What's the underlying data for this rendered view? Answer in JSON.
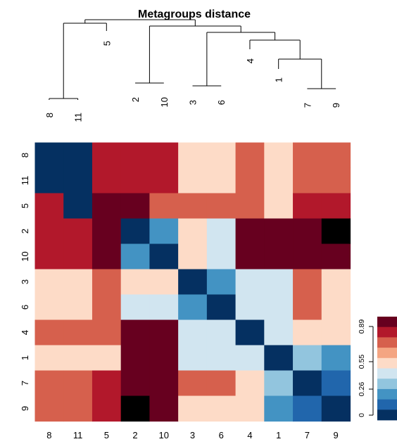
{
  "chart_data": {
    "type": "heatmap",
    "title": "Metagroups distance",
    "labels": [
      "8",
      "11",
      "5",
      "2",
      "10",
      "3",
      "6",
      "4",
      "1",
      "7",
      "9"
    ],
    "dendrogram_leaf_labels": [
      "8",
      "11",
      "5",
      "2",
      "10",
      "3",
      "6",
      "4",
      "1",
      "7",
      "9"
    ],
    "row_order_top_to_bottom": [
      "8",
      "11",
      "5",
      "2",
      "10",
      "3",
      "6",
      "4",
      "1",
      "7",
      "9"
    ],
    "col_order_left_to_right": [
      "8",
      "11",
      "5",
      "2",
      "10",
      "3",
      "6",
      "4",
      "1",
      "7",
      "9"
    ],
    "values": [
      [
        0,
        0,
        8,
        8,
        8,
        5,
        5,
        7,
        5,
        7,
        7
      ],
      [
        0,
        0,
        8,
        8,
        8,
        5,
        5,
        7,
        5,
        7,
        7
      ],
      [
        8,
        0,
        9,
        9,
        7,
        7,
        7,
        7,
        5,
        8,
        8
      ],
      [
        8,
        8,
        9,
        0,
        2,
        5,
        4,
        9,
        9,
        9,
        10
      ],
      [
        8,
        8,
        9,
        2,
        0,
        5,
        4,
        9,
        9,
        9,
        9
      ],
      [
        5,
        5,
        7,
        5,
        5,
        0,
        2,
        4,
        4,
        7,
        5
      ],
      [
        5,
        5,
        7,
        4,
        4,
        2,
        0,
        4,
        4,
        7,
        5
      ],
      [
        7,
        7,
        7,
        9,
        9,
        4,
        4,
        0,
        4,
        5,
        5
      ],
      [
        5,
        5,
        5,
        9,
        9,
        4,
        4,
        4,
        0,
        3,
        2
      ],
      [
        7,
        7,
        8,
        9,
        9,
        7,
        7,
        5,
        3,
        0,
        1
      ],
      [
        7,
        7,
        8,
        10,
        9,
        5,
        5,
        5,
        2,
        1,
        0
      ]
    ],
    "color_key": {
      "colors": [
        "#053061",
        "#2166AC",
        "#4393C3",
        "#92C5DE",
        "#D1E5F0",
        "#FDDBC7",
        "#F4A582",
        "#D6604D",
        "#B2182B",
        "#67001F"
      ],
      "tick_labels": [
        "0",
        "0.26",
        "0.55",
        "0.89"
      ]
    },
    "dendrogram": {
      "tree": [
        [
          [
            "8",
            "11"
          ],
          "5"
        ],
        [
          [
            "2",
            "10"
          ],
          [
            [
              "3",
              "6"
            ],
            [
              "4",
              [
                "1",
                [
                  "7",
                  "9"
                ]
              ]
            ]
          ]
        ]
      ],
      "internal_labels": [
        "5",
        "4",
        "1"
      ]
    }
  }
}
